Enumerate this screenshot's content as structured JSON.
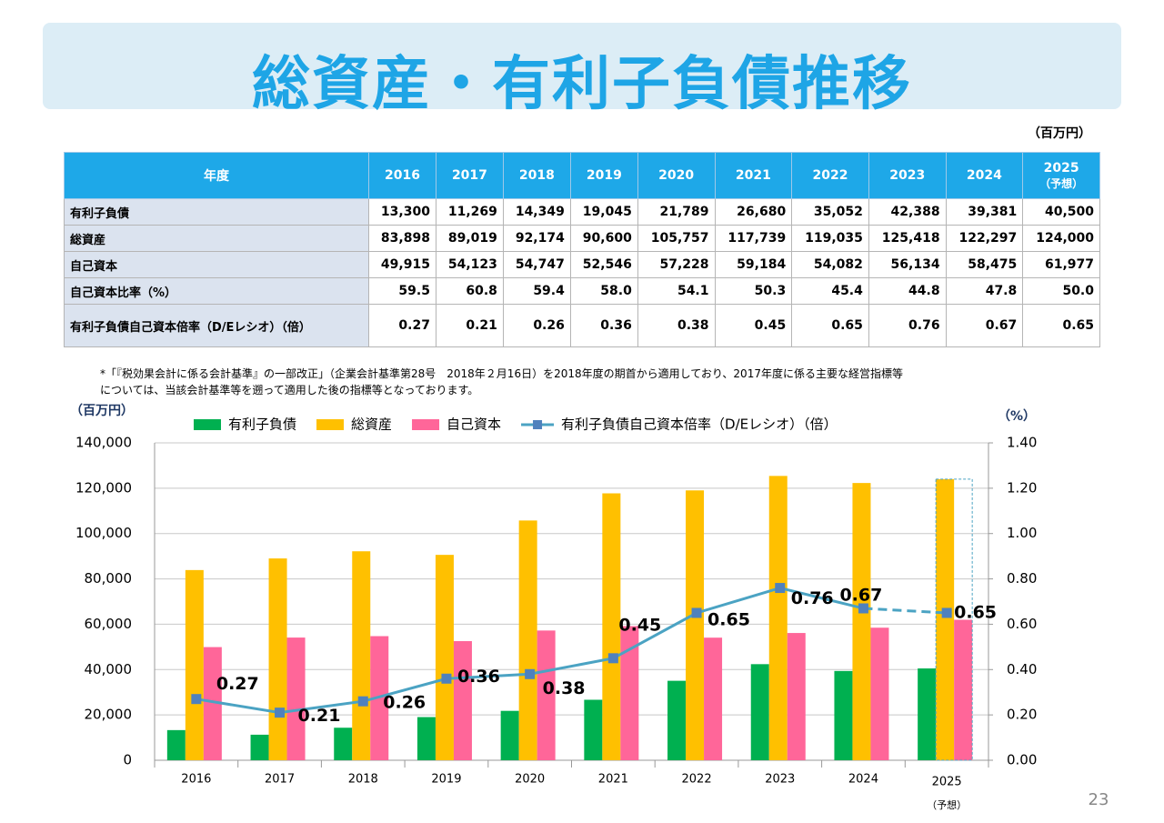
{
  "title": "総資産・有利子負債推移",
  "unit": "（百万円）",
  "table": {
    "header": [
      "年度",
      "2016",
      "2017",
      "2018",
      "2019",
      "2020",
      "2021",
      "2022",
      "2023",
      "2024",
      "2025"
    ],
    "header_note": "（予想）",
    "rows": [
      [
        "有利子負債",
        "13,300",
        "11,269",
        "14,349",
        "19,045",
        "21,789",
        "26,680",
        "35,052",
        "42,388",
        "39,381",
        "40,500"
      ],
      [
        "総資産",
        "83,898",
        "89,019",
        "92,174",
        "90,600",
        "105,757",
        "117,739",
        "119,035",
        "125,418",
        "122,297",
        "124,000"
      ],
      [
        "自己資本",
        "49,915",
        "54,123",
        "54,747",
        "52,546",
        "57,228",
        "59,184",
        "54,082",
        "56,134",
        "58,475",
        "61,977"
      ],
      [
        "自己資本比率（%）",
        "59.5",
        "60.8",
        "59.4",
        "58.0",
        "54.1",
        "50.3",
        "45.4",
        "44.8",
        "47.8",
        "50.0"
      ],
      [
        "有利子負債自己資本倍率（D/Eレシオ）（倍）",
        "0.27",
        "0.21",
        "0.26",
        "0.36",
        "0.38",
        "0.45",
        "0.65",
        "0.76",
        "0.67",
        "0.65"
      ]
    ]
  },
  "note": [
    "*「『税効果会計に係る会計基準』の一部改正」（企業会計基準第28号　2018年２月16日）を2018年度の期首から適用しており、2017年度に係る主要な経営指標等",
    "については、当該会計基準等を遡って適用した後の指標等となっております。"
  ],
  "chart_data": {
    "type": "bar",
    "y_label": "（百万円）",
    "y2_label": "（%）",
    "categories": [
      "2016",
      "2017",
      "2018",
      "2019",
      "2020",
      "2021",
      "2022",
      "2023",
      "2024",
      "2025"
    ],
    "forecast_note": "（予想）",
    "forecast_index": 9,
    "series": [
      {
        "name": "有利子負債",
        "color": "#00b050",
        "values": [
          13300,
          11269,
          14349,
          19045,
          21789,
          26680,
          35052,
          42388,
          39381,
          40500
        ]
      },
      {
        "name": "総資産",
        "color": "#ffc000",
        "values": [
          83898,
          89019,
          92174,
          90600,
          105757,
          117739,
          119035,
          125418,
          122297,
          124000
        ]
      },
      {
        "name": "自己資本",
        "color": "#ff6699",
        "values": [
          49915,
          54123,
          54747,
          52546,
          57228,
          59184,
          54082,
          56134,
          58475,
          61977
        ]
      },
      {
        "name": "有利子負債自己資本倍率（D/Eレシオ）（倍）",
        "color": "#4ba3c3",
        "type": "line",
        "axis": "y2",
        "values": [
          0.27,
          0.21,
          0.26,
          0.36,
          0.38,
          0.45,
          0.65,
          0.76,
          0.67,
          0.65
        ]
      }
    ],
    "ylim": [
      0,
      140000
    ],
    "yticks": [
      0,
      {
        "value": 20000,
        "label": "20,000"
      },
      {
        "value": 40000,
        "label": "40,000"
      },
      {
        "value": 60000,
        "label": "60,000"
      },
      {
        "value": 80000,
        "label": "80,000"
      },
      {
        "value": 100000,
        "label": "100,000"
      },
      {
        "value": 120000,
        "label": "120,000"
      },
      {
        "value": 140000,
        "label": "140,000"
      }
    ],
    "y2lim": [
      0,
      1.4
    ],
    "y2ticks": [
      {
        "value": 0,
        "label": "0.00"
      },
      {
        "value": 0.2,
        "label": "0.20"
      },
      {
        "value": 0.4,
        "label": "0.40"
      },
      {
        "value": 0.6,
        "label": "0.60"
      },
      {
        "value": 0.8,
        "label": "0.80"
      },
      {
        "value": 1.0,
        "label": "1.00"
      },
      {
        "value": 1.2,
        "label": "1.20"
      },
      {
        "value": 1.4,
        "label": "1.40"
      }
    ],
    "grid": true
  },
  "page_number": "23"
}
